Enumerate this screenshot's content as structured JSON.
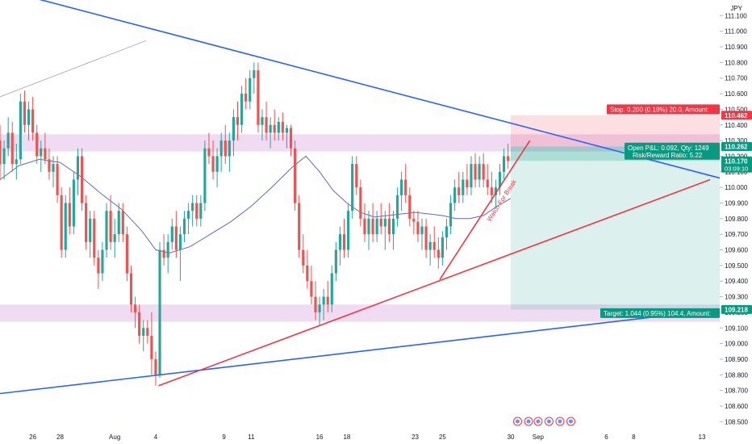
{
  "chart_data": {
    "type": "candlestick",
    "currency": "JPY",
    "y_axis": {
      "ticks": [
        "108.500",
        "108.600",
        "108.700",
        "108.800",
        "108.900",
        "109.000",
        "109.100",
        "109.200",
        "109.300",
        "109.400",
        "109.500",
        "109.600",
        "109.700",
        "109.800",
        "109.900",
        "110.000",
        "110.100",
        "110.200",
        "110.300",
        "110.400",
        "110.500",
        "110.600",
        "110.700",
        "110.800",
        "110.900",
        "111.000",
        "111.100"
      ],
      "range": [
        108.45,
        111.2
      ]
    },
    "x_axis": {
      "ticks": [
        {
          "label": "26",
          "x": 26
        },
        {
          "label": "28",
          "x": 28
        },
        {
          "label": "Aug",
          "x": 32
        },
        {
          "label": "4",
          "x": 35
        },
        {
          "label": "9",
          "x": 40
        },
        {
          "label": "11",
          "x": 42
        },
        {
          "label": "16",
          "x": 47
        },
        {
          "label": "18",
          "x": 49
        },
        {
          "label": "23",
          "x": 54
        },
        {
          "label": "25",
          "x": 56
        },
        {
          "label": "30",
          "x": 61
        },
        {
          "label": "Sep",
          "x": 63
        },
        {
          "label": "6",
          "x": 68
        },
        {
          "label": "8",
          "x": 70
        },
        {
          "label": "13",
          "x": 75
        }
      ],
      "range": [
        23.6,
        76.3
      ]
    },
    "price_labels": [
      {
        "text": "110.462",
        "value": 110.462,
        "color": "#f23645"
      },
      {
        "text": "110.262",
        "value": 110.262,
        "color": "#089981"
      },
      {
        "text": "110.170",
        "value": 110.17,
        "color": "#089981",
        "sub": "03:09:10"
      },
      {
        "text": "109.218",
        "value": 109.218,
        "color": "#089981"
      }
    ],
    "position": {
      "entry": 110.262,
      "stop": 110.462,
      "target": 109.218,
      "x_start": 61,
      "x_end": 76.3,
      "stop_label": "Stop: 0.200 (0.18%) 20.0, Amount: ",
      "target_label": "Target: 1.044 (0.95%) 104.4, Amount: ",
      "pnl_label": "Open P&L: 0.092, Qty: 1249",
      "rr_label": "Risk/Reward Ratio: 5.22"
    },
    "zones": [
      {
        "from": 110.23,
        "to": 110.34,
        "color": "#e1bee7"
      },
      {
        "from": 109.14,
        "to": 109.25,
        "color": "#e1bee7"
      }
    ],
    "trendlines": [
      {
        "from": [
          23.6,
          111.27
        ],
        "to": [
          76.3,
          110.06
        ],
        "color": "#2962ff"
      },
      {
        "from": [
          23.6,
          108.68
        ],
        "to": [
          76.3,
          109.22
        ],
        "color": "#2962ff"
      },
      {
        "from": [
          35.2,
          108.73
        ],
        "to": [
          75.6,
          110.05
        ],
        "color": "#f23645"
      },
      {
        "from": [
          55.8,
          109.41
        ],
        "to": [
          62.4,
          110.3
        ],
        "color": "#f23645"
      },
      {
        "from": [
          23.6,
          110.58
        ],
        "to": [
          34.3,
          110.94
        ],
        "color": "#b2b5be"
      }
    ],
    "annotation": {
      "text": "Watch For Break",
      "color": "#f23645",
      "x": 59.5,
      "y": 109.78
    },
    "moving_average": [
      {
        "x": 23.6,
        "y": 110.05
      },
      {
        "x": 25,
        "y": 110.14
      },
      {
        "x": 26.5,
        "y": 110.18
      },
      {
        "x": 28,
        "y": 110.16
      },
      {
        "x": 29.5,
        "y": 110.07
      },
      {
        "x": 31,
        "y": 109.96
      },
      {
        "x": 32.5,
        "y": 109.86
      },
      {
        "x": 34,
        "y": 109.72
      },
      {
        "x": 35,
        "y": 109.6
      },
      {
        "x": 36,
        "y": 109.58
      },
      {
        "x": 37.5,
        "y": 109.62
      },
      {
        "x": 39,
        "y": 109.7
      },
      {
        "x": 40.5,
        "y": 109.78
      },
      {
        "x": 42,
        "y": 109.88
      },
      {
        "x": 43.5,
        "y": 110.0
      },
      {
        "x": 45,
        "y": 110.13
      },
      {
        "x": 46,
        "y": 110.2
      },
      {
        "x": 47,
        "y": 110.1
      },
      {
        "x": 48,
        "y": 109.98
      },
      {
        "x": 49,
        "y": 109.9
      },
      {
        "x": 50,
        "y": 109.84
      },
      {
        "x": 51,
        "y": 109.81
      },
      {
        "x": 52,
        "y": 109.82
      },
      {
        "x": 53,
        "y": 109.83
      },
      {
        "x": 54,
        "y": 109.84
      },
      {
        "x": 55,
        "y": 109.83
      },
      {
        "x": 56,
        "y": 109.82
      },
      {
        "x": 57,
        "y": 109.8
      },
      {
        "x": 58,
        "y": 109.8
      },
      {
        "x": 59,
        "y": 109.82
      },
      {
        "x": 60,
        "y": 109.88
      },
      {
        "x": 61,
        "y": 109.93
      }
    ],
    "candles": [
      [
        23.6,
        110.3,
        110.4,
        110.05,
        110.15
      ],
      [
        23.9,
        110.15,
        110.3,
        110.05,
        110.25
      ],
      [
        24.2,
        110.25,
        110.45,
        110.2,
        110.35
      ],
      [
        24.5,
        110.35,
        110.42,
        110.1,
        110.15
      ],
      [
        24.8,
        110.15,
        110.28,
        110.05,
        110.18
      ],
      [
        25.1,
        110.18,
        110.6,
        110.15,
        110.55
      ],
      [
        25.4,
        110.55,
        110.62,
        110.35,
        110.4
      ],
      [
        25.7,
        110.4,
        110.55,
        110.3,
        110.5
      ],
      [
        26.0,
        110.5,
        110.58,
        110.3,
        110.35
      ],
      [
        26.3,
        110.35,
        110.4,
        110.15,
        110.2
      ],
      [
        26.6,
        110.2,
        110.3,
        110.1,
        110.25
      ],
      [
        26.9,
        110.25,
        110.35,
        110.15,
        110.18
      ],
      [
        27.2,
        110.18,
        110.25,
        110.05,
        110.1
      ],
      [
        27.5,
        110.1,
        110.2,
        110.0,
        110.15
      ],
      [
        27.8,
        110.15,
        110.2,
        109.9,
        109.95
      ],
      [
        28.1,
        109.95,
        110.0,
        109.55,
        109.6
      ],
      [
        28.4,
        109.6,
        109.95,
        109.55,
        109.9
      ],
      [
        28.7,
        109.9,
        110.0,
        109.7,
        109.75
      ],
      [
        29.0,
        109.75,
        110.1,
        109.7,
        110.05
      ],
      [
        29.3,
        110.05,
        110.25,
        109.95,
        110.2
      ],
      [
        29.6,
        110.2,
        110.25,
        109.85,
        109.9
      ],
      [
        29.9,
        109.9,
        109.95,
        109.6,
        109.65
      ],
      [
        30.2,
        109.65,
        109.85,
        109.55,
        109.8
      ],
      [
        30.5,
        109.8,
        109.85,
        109.5,
        109.55
      ],
      [
        30.8,
        109.55,
        109.6,
        109.35,
        109.45
      ],
      [
        31.1,
        109.45,
        109.65,
        109.4,
        109.6
      ],
      [
        31.4,
        109.6,
        109.9,
        109.55,
        109.85
      ],
      [
        31.7,
        109.85,
        109.95,
        109.6,
        109.65
      ],
      [
        32.0,
        109.65,
        109.8,
        109.55,
        109.7
      ],
      [
        32.3,
        109.7,
        109.9,
        109.65,
        109.85
      ],
      [
        32.6,
        109.85,
        109.9,
        109.65,
        109.7
      ],
      [
        32.9,
        109.7,
        109.75,
        109.4,
        109.45
      ],
      [
        33.2,
        109.45,
        109.5,
        109.2,
        109.25
      ],
      [
        33.5,
        109.25,
        109.3,
        109.1,
        109.2
      ],
      [
        33.8,
        109.2,
        109.25,
        109.0,
        109.05
      ],
      [
        34.1,
        109.05,
        109.15,
        108.95,
        109.1
      ],
      [
        34.4,
        109.1,
        109.15,
        109.0,
        109.05
      ],
      [
        34.7,
        109.05,
        109.2,
        108.8,
        108.9
      ],
      [
        35.0,
        108.9,
        108.95,
        108.73,
        108.8
      ],
      [
        35.3,
        108.8,
        109.65,
        108.78,
        109.6
      ],
      [
        35.6,
        109.6,
        109.7,
        109.5,
        109.55
      ],
      [
        35.9,
        109.55,
        109.7,
        109.45,
        109.65
      ],
      [
        36.2,
        109.65,
        109.8,
        109.6,
        109.75
      ],
      [
        36.5,
        109.75,
        109.85,
        109.55,
        109.6
      ],
      [
        36.8,
        109.6,
        109.75,
        109.4,
        109.7
      ],
      [
        37.1,
        109.7,
        109.85,
        109.65,
        109.8
      ],
      [
        37.4,
        109.8,
        109.9,
        109.7,
        109.85
      ],
      [
        37.7,
        109.85,
        109.95,
        109.75,
        109.9
      ],
      [
        38.0,
        109.9,
        109.95,
        109.75,
        109.8
      ],
      [
        38.3,
        109.8,
        109.95,
        109.75,
        109.9
      ],
      [
        38.6,
        109.9,
        110.3,
        109.85,
        110.25
      ],
      [
        38.9,
        110.25,
        110.35,
        110.15,
        110.2
      ],
      [
        39.2,
        110.2,
        110.3,
        110.05,
        110.1
      ],
      [
        39.5,
        110.1,
        110.25,
        110.0,
        110.2
      ],
      [
        39.8,
        110.2,
        110.35,
        110.1,
        110.3
      ],
      [
        40.1,
        110.3,
        110.4,
        110.15,
        110.2
      ],
      [
        40.4,
        110.2,
        110.35,
        110.1,
        110.3
      ],
      [
        40.7,
        110.3,
        110.5,
        110.2,
        110.45
      ],
      [
        41.0,
        110.45,
        110.55,
        110.3,
        110.4
      ],
      [
        41.3,
        110.4,
        110.65,
        110.35,
        110.6
      ],
      [
        41.6,
        110.6,
        110.7,
        110.5,
        110.55
      ],
      [
        41.9,
        110.55,
        110.75,
        110.5,
        110.7
      ],
      [
        42.2,
        110.7,
        110.8,
        110.6,
        110.75
      ],
      [
        42.5,
        110.75,
        110.8,
        110.35,
        110.4
      ],
      [
        42.8,
        110.4,
        110.5,
        110.3,
        110.45
      ],
      [
        43.1,
        110.45,
        110.55,
        110.3,
        110.35
      ],
      [
        43.4,
        110.35,
        110.45,
        110.25,
        110.4
      ],
      [
        43.7,
        110.4,
        110.5,
        110.3,
        110.35
      ],
      [
        44.0,
        110.35,
        110.45,
        110.3,
        110.42
      ],
      [
        44.3,
        110.42,
        110.48,
        110.3,
        110.35
      ],
      [
        44.6,
        110.35,
        110.4,
        110.25,
        110.38
      ],
      [
        44.9,
        110.38,
        110.4,
        110.2,
        110.25
      ],
      [
        45.2,
        110.25,
        110.3,
        109.85,
        109.9
      ],
      [
        45.5,
        109.9,
        109.95,
        109.55,
        109.6
      ],
      [
        45.8,
        109.6,
        109.7,
        109.45,
        109.5
      ],
      [
        46.1,
        109.5,
        109.6,
        109.35,
        109.4
      ],
      [
        46.4,
        109.4,
        109.5,
        109.25,
        109.3
      ],
      [
        46.7,
        109.3,
        109.4,
        109.15,
        109.2
      ],
      [
        47.0,
        109.2,
        109.3,
        109.12,
        109.25
      ],
      [
        47.3,
        109.25,
        109.35,
        109.15,
        109.3
      ],
      [
        47.6,
        109.3,
        109.4,
        109.2,
        109.25
      ],
      [
        47.9,
        109.25,
        109.5,
        109.2,
        109.45
      ],
      [
        48.2,
        109.45,
        109.65,
        109.4,
        109.6
      ],
      [
        48.5,
        109.6,
        109.75,
        109.5,
        109.7
      ],
      [
        48.8,
        109.7,
        109.8,
        109.55,
        109.6
      ],
      [
        49.1,
        109.6,
        109.9,
        109.55,
        109.85
      ],
      [
        49.4,
        109.85,
        110.2,
        109.8,
        110.15
      ],
      [
        49.7,
        110.15,
        110.2,
        109.95,
        110.0
      ],
      [
        50.0,
        110.0,
        110.05,
        109.75,
        109.8
      ],
      [
        50.3,
        109.8,
        109.9,
        109.65,
        109.7
      ],
      [
        50.6,
        109.7,
        109.85,
        109.6,
        109.8
      ],
      [
        50.9,
        109.8,
        109.9,
        109.65,
        109.7
      ],
      [
        51.2,
        109.7,
        109.85,
        109.65,
        109.8
      ],
      [
        51.5,
        109.8,
        109.9,
        109.7,
        109.75
      ],
      [
        51.8,
        109.75,
        109.85,
        109.6,
        109.8
      ],
      [
        52.1,
        109.8,
        109.9,
        109.65,
        109.7
      ],
      [
        52.4,
        109.7,
        109.85,
        109.6,
        109.8
      ],
      [
        52.7,
        109.8,
        110.0,
        109.75,
        109.95
      ],
      [
        53.0,
        109.95,
        110.1,
        109.85,
        110.05
      ],
      [
        53.3,
        110.05,
        110.15,
        109.9,
        109.95
      ],
      [
        53.6,
        109.95,
        110.0,
        109.75,
        109.8
      ],
      [
        53.9,
        109.8,
        109.85,
        109.7,
        109.78
      ],
      [
        54.2,
        109.78,
        109.85,
        109.65,
        109.7
      ],
      [
        54.5,
        109.7,
        109.8,
        109.6,
        109.75
      ],
      [
        54.8,
        109.75,
        109.8,
        109.55,
        109.6
      ],
      [
        55.1,
        109.6,
        109.7,
        109.5,
        109.65
      ],
      [
        55.4,
        109.65,
        109.75,
        109.55,
        109.6
      ],
      [
        55.7,
        109.6,
        109.68,
        109.48,
        109.55
      ],
      [
        56.0,
        109.55,
        109.72,
        109.5,
        109.68
      ],
      [
        56.3,
        109.68,
        109.8,
        109.6,
        109.75
      ],
      [
        56.6,
        109.75,
        109.95,
        109.7,
        109.9
      ],
      [
        56.9,
        109.9,
        110.05,
        109.85,
        110.0
      ],
      [
        57.2,
        110.0,
        110.1,
        109.9,
        109.95
      ],
      [
        57.5,
        109.95,
        110.1,
        109.9,
        110.05
      ],
      [
        57.8,
        110.05,
        110.15,
        109.95,
        110.0
      ],
      [
        58.1,
        110.0,
        110.2,
        109.95,
        110.15
      ],
      [
        58.4,
        110.15,
        110.22,
        110.0,
        110.05
      ],
      [
        58.7,
        110.05,
        110.2,
        110.0,
        110.15
      ],
      [
        59.0,
        110.15,
        110.22,
        110.0,
        110.05
      ],
      [
        59.3,
        110.05,
        110.15,
        109.95,
        110.0
      ],
      [
        59.6,
        110.0,
        110.1,
        109.9,
        109.95
      ],
      [
        59.9,
        109.95,
        110.05,
        109.88,
        110.0
      ],
      [
        60.2,
        110.0,
        110.15,
        109.95,
        110.1
      ],
      [
        60.5,
        110.1,
        110.25,
        110.05,
        110.2
      ],
      [
        60.8,
        110.2,
        110.28,
        110.12,
        110.17
      ]
    ]
  }
}
